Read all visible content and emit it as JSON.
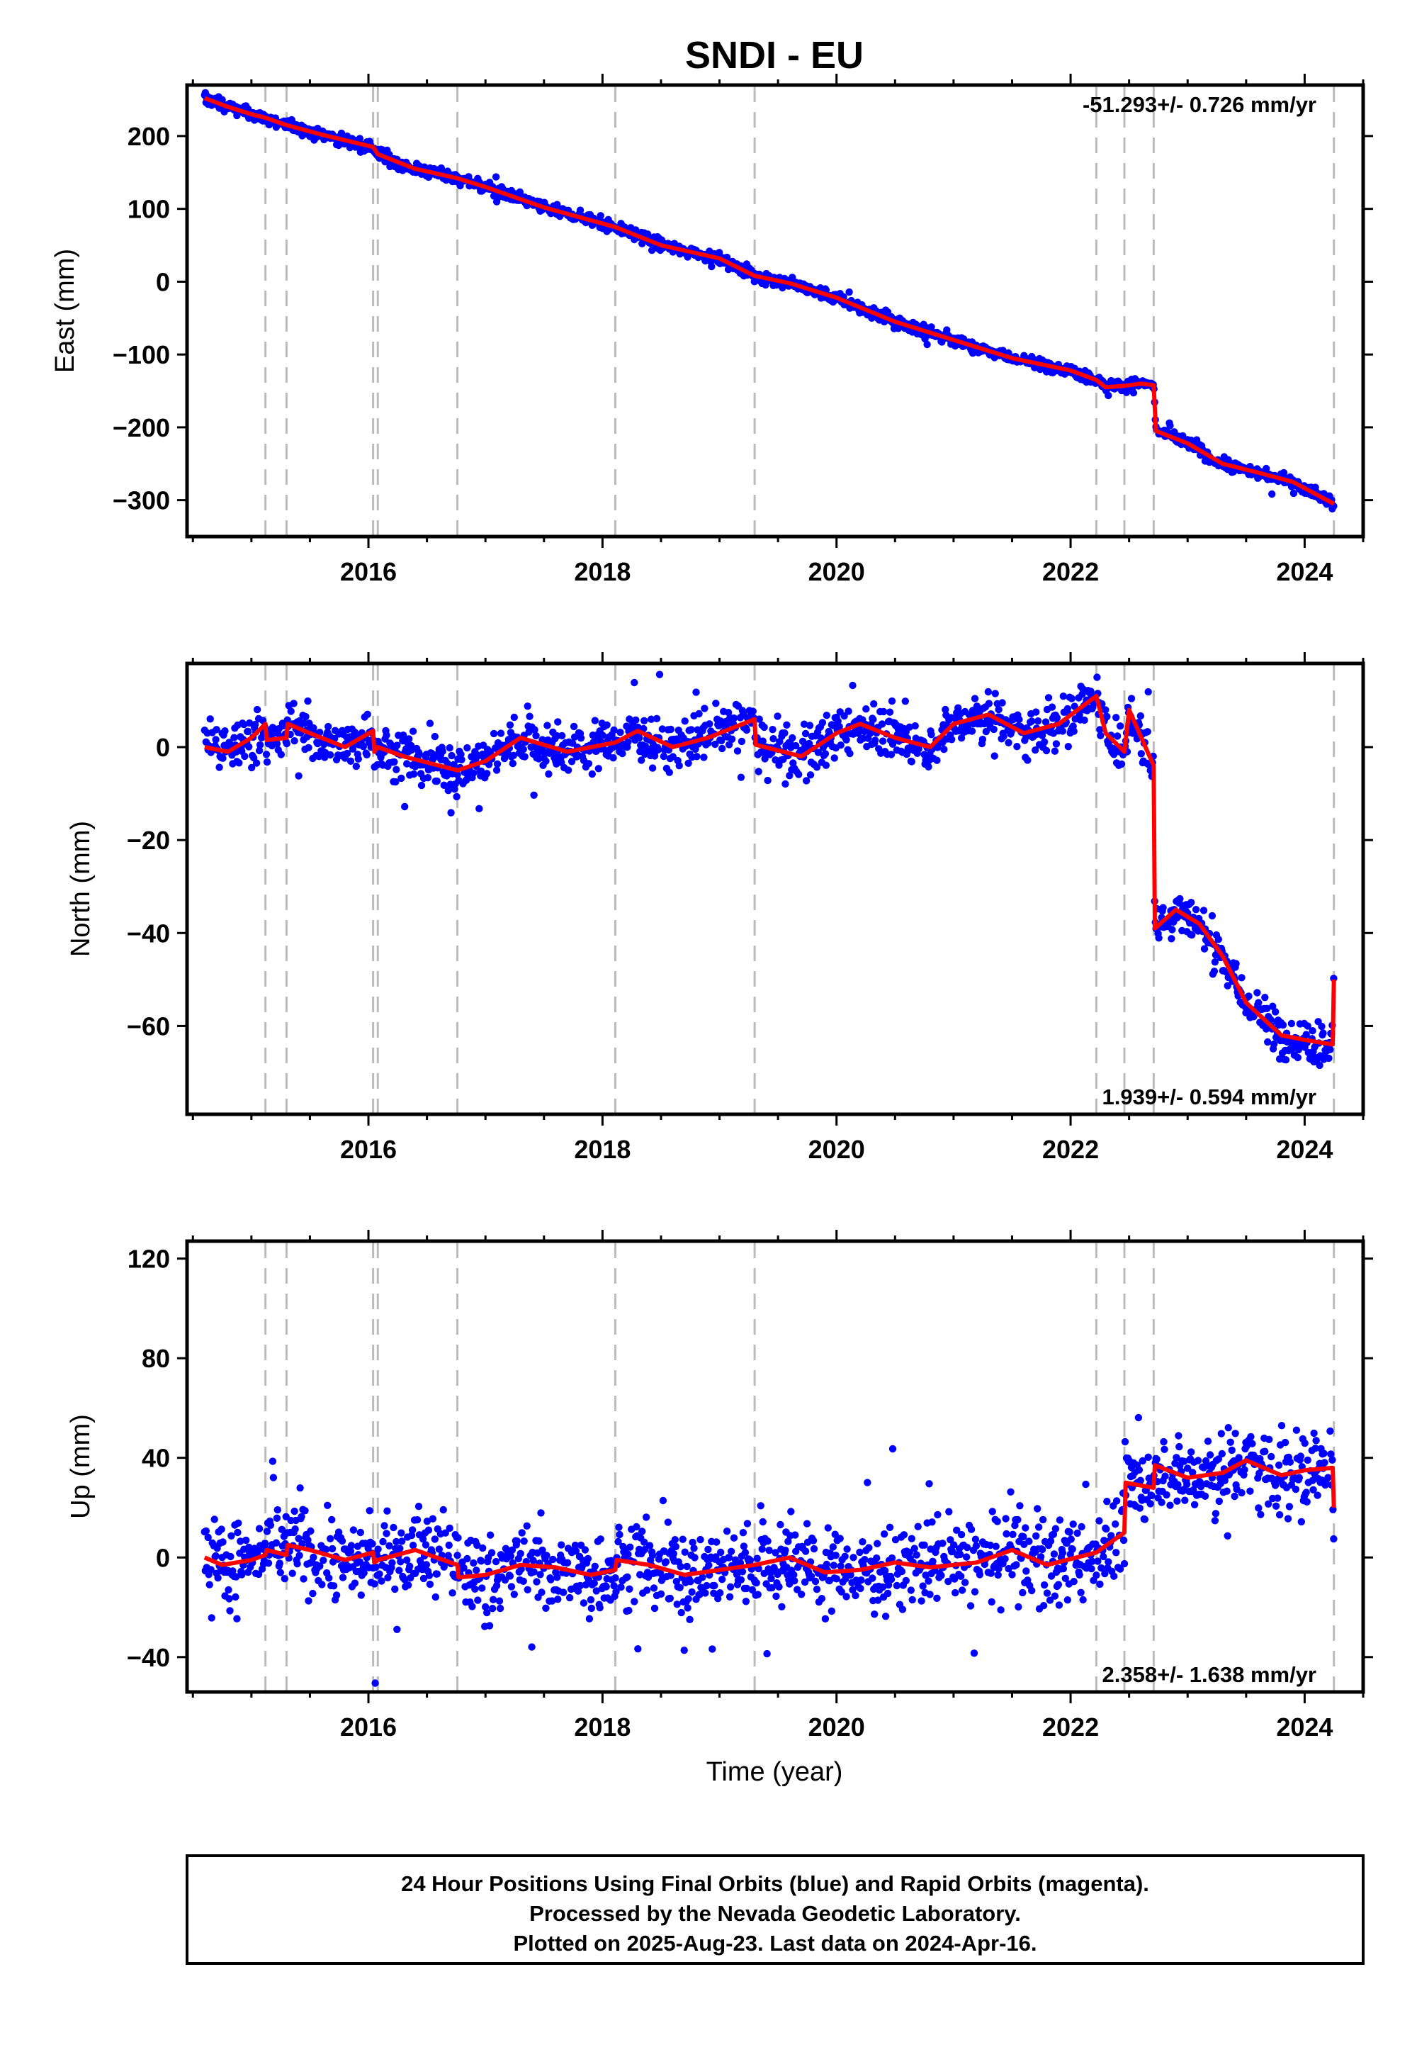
{
  "title": "SNDI - EU",
  "xlabel": "Time (year)",
  "x_tick_labels": [
    "2016",
    "2018",
    "2020",
    "2022",
    "2024"
  ],
  "footer": {
    "line1": "24 Hour Positions Using Final Orbits (blue) and Rapid Orbits (magenta).",
    "line2": "Processed by the Nevada Geodetic Laboratory.",
    "line3": "Plotted on 2025-Aug-23. Last data on 2024-Apr-16."
  },
  "colors": {
    "points": "#0000ff",
    "model": "#ff0000",
    "events": "#bbbbbb"
  },
  "chart_data": [
    {
      "type": "scatter",
      "ylabel": "East (mm)",
      "rate_label": "-51.293+/- 0.726 mm/yr",
      "rate_position": "top-right",
      "xlim": [
        2014.45,
        2024.5
      ],
      "ylim": [
        -350,
        270
      ],
      "y_ticks": [
        200,
        100,
        0,
        -100,
        -200,
        -300
      ],
      "y_tick_labels": [
        "200",
        "100",
        "0",
        "−100",
        "−200",
        "−300"
      ],
      "x_ticks": [
        2016,
        2018,
        2020,
        2022,
        2024
      ],
      "event_lines": [
        2015.12,
        2015.3,
        2016.04,
        2016.08,
        2016.76,
        2018.11,
        2019.3,
        2022.22,
        2022.46,
        2022.71,
        2024.25
      ],
      "series": [
        {
          "kind": "points",
          "scatter": 4,
          "x": [
            2014.6,
            2014.8,
            2015.0,
            2015.12,
            2015.3,
            2015.6,
            2016.04,
            2016.08,
            2016.4,
            2016.76,
            2017.0,
            2017.5,
            2018.11,
            2018.5,
            2019.0,
            2019.3,
            2019.6,
            2020.0,
            2020.5,
            2021.0,
            2021.5,
            2022.0,
            2022.22,
            2022.3,
            2022.46,
            2022.6,
            2022.71,
            2022.73,
            2023.0,
            2023.3,
            2023.6,
            2023.9,
            2024.25
          ],
          "y": [
            252,
            240,
            230,
            225,
            215,
            202,
            185,
            175,
            155,
            142,
            130,
            102,
            75,
            50,
            32,
            8,
            -2,
            -22,
            -55,
            -80,
            -105,
            -122,
            -135,
            -145,
            -143,
            -140,
            -142,
            -205,
            -222,
            -250,
            -262,
            -275,
            -305
          ]
        },
        {
          "kind": "line",
          "x": [
            2014.6,
            2014.8,
            2015.0,
            2015.12,
            2015.3,
            2015.6,
            2016.04,
            2016.08,
            2016.4,
            2016.76,
            2017.0,
            2017.5,
            2018.11,
            2018.5,
            2019.0,
            2019.3,
            2019.6,
            2020.0,
            2020.5,
            2021.0,
            2021.5,
            2022.0,
            2022.22,
            2022.3,
            2022.46,
            2022.6,
            2022.71,
            2022.73,
            2023.0,
            2023.3,
            2023.6,
            2023.9,
            2024.25
          ],
          "y": [
            252,
            240,
            230,
            225,
            215,
            202,
            185,
            175,
            155,
            142,
            130,
            102,
            75,
            50,
            32,
            8,
            -2,
            -22,
            -55,
            -80,
            -105,
            -122,
            -135,
            -145,
            -143,
            -140,
            -142,
            -205,
            -222,
            -250,
            -262,
            -275,
            -305
          ]
        }
      ]
    },
    {
      "type": "scatter",
      "ylabel": "North (mm)",
      "rate_label": "1.939+/- 0.594 mm/yr",
      "rate_position": "bottom-right",
      "xlim": [
        2014.45,
        2024.5
      ],
      "ylim": [
        -79,
        18
      ],
      "y_ticks": [
        0,
        -20,
        -40,
        -60
      ],
      "y_tick_labels": [
        "0",
        "−20",
        "−40",
        "−60"
      ],
      "x_ticks": [
        2016,
        2018,
        2020,
        2022,
        2024
      ],
      "event_lines": [
        2015.12,
        2015.3,
        2016.04,
        2016.08,
        2016.76,
        2018.11,
        2019.3,
        2022.22,
        2022.46,
        2022.71,
        2024.25
      ],
      "series": [
        {
          "kind": "points",
          "scatter": 2.5,
          "x": [
            2014.6,
            2014.8,
            2015.0,
            2015.12,
            2015.13,
            2015.3,
            2015.31,
            2015.5,
            2015.8,
            2016.04,
            2016.05,
            2016.08,
            2016.3,
            2016.76,
            2017.0,
            2017.3,
            2017.7,
            2018.11,
            2018.3,
            2018.6,
            2018.9,
            2019.2,
            2019.3,
            2019.31,
            2019.7,
            2020.0,
            2020.2,
            2020.5,
            2020.8,
            2021.0,
            2021.3,
            2021.6,
            2021.9,
            2022.22,
            2022.3,
            2022.46,
            2022.5,
            2022.71,
            2022.72,
            2022.9,
            2023.1,
            2023.3,
            2023.5,
            2023.8,
            2024.0,
            2024.24,
            2024.25
          ],
          "y": [
            0,
            -1,
            2,
            5,
            1.5,
            2,
            5,
            3,
            0,
            3.5,
            -1,
            0,
            -2,
            -5,
            -3,
            2,
            -1,
            1,
            3.5,
            0,
            2,
            5,
            6,
            0.5,
            -2,
            3,
            5,
            2,
            0,
            5,
            7,
            3,
            5,
            11,
            3,
            -1,
            8,
            -4,
            -39,
            -35,
            -38,
            -45,
            -55,
            -62,
            -63,
            -64,
            -50
          ]
        },
        {
          "kind": "line",
          "x": [
            2014.6,
            2014.8,
            2015.0,
            2015.12,
            2015.13,
            2015.3,
            2015.31,
            2015.5,
            2015.8,
            2016.04,
            2016.05,
            2016.08,
            2016.3,
            2016.76,
            2017.0,
            2017.3,
            2017.7,
            2018.11,
            2018.3,
            2018.6,
            2018.9,
            2019.2,
            2019.3,
            2019.31,
            2019.7,
            2020.0,
            2020.2,
            2020.5,
            2020.8,
            2021.0,
            2021.3,
            2021.6,
            2021.9,
            2022.22,
            2022.3,
            2022.46,
            2022.5,
            2022.71,
            2022.72,
            2022.9,
            2023.1,
            2023.3,
            2023.5,
            2023.8,
            2024.0,
            2024.24,
            2024.25
          ],
          "y": [
            0,
            -1,
            2,
            5,
            1.5,
            2,
            5,
            3,
            0,
            3.5,
            -1,
            0,
            -2,
            -5,
            -3,
            2,
            -1,
            1,
            3.5,
            0,
            2,
            5,
            6,
            0.5,
            -2,
            3,
            5,
            2,
            0,
            5,
            7,
            3,
            5,
            11,
            3,
            -1,
            8,
            -4,
            -39,
            -35,
            -38,
            -45,
            -55,
            -62,
            -63,
            -64,
            -50
          ]
        }
      ]
    },
    {
      "type": "scatter",
      "ylabel": "Up (mm)",
      "rate_label": "2.358+/- 1.638 mm/yr",
      "rate_position": "bottom-right",
      "xlim": [
        2014.45,
        2024.5
      ],
      "ylim": [
        -54,
        127
      ],
      "y_ticks": [
        120,
        80,
        40,
        0,
        -40
      ],
      "y_tick_labels": [
        "120",
        "80",
        "40",
        "0",
        "−40"
      ],
      "x_ticks": [
        2016,
        2018,
        2020,
        2022,
        2024
      ],
      "event_lines": [
        2015.12,
        2015.3,
        2016.04,
        2016.08,
        2016.76,
        2018.11,
        2019.3,
        2022.22,
        2022.46,
        2022.71,
        2024.25
      ],
      "series": [
        {
          "kind": "points",
          "scatter": 8,
          "x": [
            2014.6,
            2014.75,
            2015.0,
            2015.12,
            2015.13,
            2015.3,
            2015.31,
            2015.5,
            2015.8,
            2016.04,
            2016.05,
            2016.08,
            2016.4,
            2016.76,
            2016.77,
            2017.0,
            2017.3,
            2017.6,
            2017.9,
            2018.11,
            2018.12,
            2018.4,
            2018.7,
            2019.0,
            2019.3,
            2019.6,
            2019.9,
            2020.2,
            2020.5,
            2020.8,
            2021.2,
            2021.5,
            2021.8,
            2022.22,
            2022.46,
            2022.47,
            2022.71,
            2022.72,
            2023.0,
            2023.3,
            2023.5,
            2023.8,
            2024.0,
            2024.24,
            2024.25
          ],
          "y": [
            0,
            -3,
            -1,
            1,
            3,
            1,
            5,
            3,
            -1,
            2,
            -2,
            -1,
            3,
            -3,
            -8,
            -7,
            -3,
            -4,
            -7,
            -5,
            -1,
            -3,
            -7,
            -5,
            -3,
            0,
            -6,
            -5,
            -2,
            -4,
            -2,
            3,
            -3,
            2,
            10,
            30,
            28,
            37,
            32,
            34,
            39,
            33,
            35,
            36,
            20
          ]
        },
        {
          "kind": "line",
          "x": [
            2014.6,
            2014.75,
            2015.0,
            2015.12,
            2015.13,
            2015.3,
            2015.31,
            2015.5,
            2015.8,
            2016.04,
            2016.05,
            2016.08,
            2016.4,
            2016.76,
            2016.77,
            2017.0,
            2017.3,
            2017.6,
            2017.9,
            2018.11,
            2018.12,
            2018.4,
            2018.7,
            2019.0,
            2019.3,
            2019.6,
            2019.9,
            2020.2,
            2020.5,
            2020.8,
            2021.2,
            2021.5,
            2021.8,
            2022.22,
            2022.46,
            2022.47,
            2022.71,
            2022.72,
            2023.0,
            2023.3,
            2023.5,
            2023.8,
            2024.0,
            2024.24,
            2024.25
          ],
          "y": [
            0,
            -3,
            -1,
            1,
            3,
            1,
            5,
            3,
            -1,
            2,
            -2,
            -1,
            3,
            -3,
            -8,
            -7,
            -3,
            -4,
            -7,
            -5,
            -1,
            -3,
            -7,
            -5,
            -3,
            0,
            -6,
            -5,
            -2,
            -4,
            -2,
            3,
            -3,
            2,
            10,
            30,
            28,
            37,
            32,
            34,
            39,
            33,
            35,
            36,
            20
          ]
        }
      ]
    }
  ]
}
